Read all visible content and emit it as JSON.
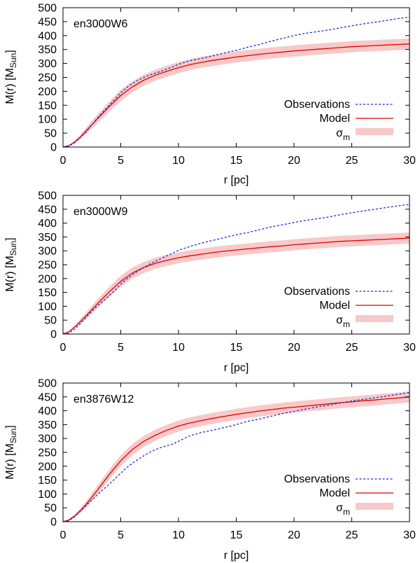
{
  "colors": {
    "observations": "#1f2bd6",
    "model": "#e00000",
    "band": "#f7c9c9",
    "frame": "#000000"
  },
  "chart_data": [
    {
      "type": "line",
      "title": "en3000W6",
      "xlabel": "r [pc]",
      "ylabel": {
        "main": "M(r) [M",
        "sub": "Sun",
        "close": "]"
      },
      "xlim": [
        0,
        30
      ],
      "ylim": [
        0,
        500
      ],
      "xticks": [
        0,
        5,
        10,
        15,
        20,
        25,
        30
      ],
      "yticks": [
        0,
        50,
        100,
        150,
        200,
        250,
        300,
        350,
        400,
        450,
        500
      ],
      "legend": [
        {
          "label": "Observations",
          "style": "dashed"
        },
        {
          "label": "Model",
          "style": "solid"
        },
        {
          "label": "σ",
          "sub": "m",
          "style": "band"
        }
      ],
      "series": [
        {
          "name": "Observations",
          "x": [
            0,
            0.5,
            1,
            1.5,
            2,
            2.5,
            3,
            3.5,
            4,
            4.5,
            5,
            5.5,
            6,
            6.5,
            7,
            7.5,
            8,
            8.5,
            9,
            9.5,
            10,
            11,
            12,
            13,
            14,
            15,
            16,
            17,
            18,
            19,
            20,
            21,
            22,
            23,
            24,
            25,
            26,
            27,
            28,
            29,
            30
          ],
          "y": [
            0,
            3,
            15,
            35,
            55,
            80,
            105,
            128,
            150,
            172,
            195,
            213,
            228,
            240,
            250,
            258,
            265,
            272,
            280,
            288,
            297,
            310,
            318,
            328,
            338,
            347,
            358,
            368,
            380,
            390,
            400,
            408,
            414,
            420,
            428,
            435,
            442,
            448,
            454,
            461,
            466
          ]
        },
        {
          "name": "Model",
          "x": [
            0,
            0.5,
            1,
            1.5,
            2,
            3,
            4,
            5,
            6,
            7,
            8,
            9,
            10,
            11,
            12,
            13,
            14,
            15,
            16,
            17,
            18,
            19,
            20,
            21,
            22,
            23,
            24,
            25,
            26,
            27,
            28,
            29,
            30
          ],
          "y": [
            0,
            5,
            18,
            36,
            58,
            102,
            145,
            185,
            216,
            240,
            258,
            272,
            285,
            296,
            304,
            311,
            317,
            323,
            328,
            333,
            337,
            341,
            345,
            348,
            351,
            354,
            357,
            360,
            362,
            364,
            366,
            368,
            370
          ],
          "band": [
            0,
            1,
            4,
            8,
            12,
            16,
            18,
            20,
            20,
            20,
            20,
            20,
            20,
            20,
            20,
            20,
            20,
            20,
            20,
            20,
            20,
            20,
            20,
            20,
            20,
            20,
            20,
            20,
            20,
            20,
            20,
            20,
            20
          ]
        }
      ]
    },
    {
      "type": "line",
      "title": "en3000W9",
      "xlabel": "r [pc]",
      "ylabel": {
        "main": "M(r) [M",
        "sub": "Sun",
        "close": "]"
      },
      "xlim": [
        0,
        30
      ],
      "ylim": [
        0,
        500
      ],
      "xticks": [
        0,
        5,
        10,
        15,
        20,
        25,
        30
      ],
      "yticks": [
        0,
        50,
        100,
        150,
        200,
        250,
        300,
        350,
        400,
        450,
        500
      ],
      "legend": [
        {
          "label": "Observations",
          "style": "dashed"
        },
        {
          "label": "Model",
          "style": "solid"
        },
        {
          "label": "σ",
          "sub": "m",
          "style": "band"
        }
      ],
      "series": [
        {
          "name": "Observations",
          "x": [
            0,
            0.5,
            1,
            1.5,
            2,
            2.5,
            3,
            3.5,
            4,
            4.5,
            5,
            5.5,
            6,
            6.5,
            7,
            7.5,
            8,
            8.5,
            9,
            9.5,
            10,
            11,
            12,
            13,
            14,
            15,
            16,
            17,
            18,
            19,
            20,
            21,
            22,
            23,
            24,
            25,
            26,
            27,
            28,
            29,
            30
          ],
          "y": [
            0,
            3,
            17,
            38,
            60,
            82,
            102,
            120,
            138,
            158,
            180,
            198,
            213,
            228,
            240,
            252,
            262,
            272,
            282,
            292,
            302,
            316,
            328,
            338,
            348,
            358,
            366,
            376,
            386,
            394,
            402,
            410,
            416,
            422,
            430,
            437,
            444,
            450,
            456,
            462,
            467
          ]
        },
        {
          "name": "Model",
          "x": [
            0,
            0.5,
            1,
            1.5,
            2,
            3,
            4,
            5,
            6,
            7,
            8,
            9,
            10,
            11,
            12,
            13,
            14,
            15,
            16,
            17,
            18,
            19,
            20,
            21,
            22,
            23,
            24,
            25,
            26,
            27,
            28,
            29,
            30
          ],
          "y": [
            0,
            8,
            25,
            45,
            66,
            110,
            152,
            190,
            220,
            240,
            255,
            266,
            275,
            282,
            288,
            294,
            299,
            303,
            307,
            311,
            315,
            318,
            322,
            325,
            328,
            331,
            334,
            336,
            338,
            340,
            342,
            344,
            346
          ],
          "band": [
            0,
            2,
            5,
            9,
            12,
            16,
            18,
            20,
            20,
            20,
            20,
            20,
            20,
            20,
            20,
            20,
            20,
            20,
            20,
            20,
            20,
            20,
            20,
            20,
            20,
            20,
            20,
            20,
            20,
            20,
            20,
            20,
            20
          ]
        }
      ]
    },
    {
      "type": "line",
      "title": "en3876W12",
      "xlabel": "r [pc]",
      "ylabel": {
        "main": "M(r) [M",
        "sub": "Sun",
        "close": "]"
      },
      "xlim": [
        0,
        30
      ],
      "ylim": [
        0,
        500
      ],
      "xticks": [
        0,
        5,
        10,
        15,
        20,
        25,
        30
      ],
      "yticks": [
        0,
        50,
        100,
        150,
        200,
        250,
        300,
        350,
        400,
        450,
        500
      ],
      "legend": [
        {
          "label": "Observations",
          "style": "dashed"
        },
        {
          "label": "Model",
          "style": "solid"
        },
        {
          "label": "σ",
          "sub": "m",
          "style": "band"
        }
      ],
      "series": [
        {
          "name": "Observations",
          "x": [
            0,
            0.5,
            1,
            1.5,
            2,
            2.5,
            3,
            3.5,
            4,
            4.5,
            5,
            5.5,
            6,
            6.5,
            7,
            7.5,
            8,
            8.5,
            9,
            9.5,
            10,
            11,
            12,
            13,
            14,
            15,
            16,
            17,
            18,
            19,
            20,
            21,
            22,
            23,
            24,
            25,
            26,
            27,
            28,
            29,
            30
          ],
          "y": [
            0,
            3,
            18,
            38,
            58,
            78,
            98,
            117,
            135,
            155,
            175,
            195,
            210,
            225,
            238,
            250,
            260,
            268,
            274,
            280,
            290,
            310,
            322,
            330,
            340,
            350,
            362,
            370,
            380,
            390,
            398,
            406,
            414,
            420,
            428,
            435,
            441,
            447,
            453,
            459,
            466
          ]
        },
        {
          "name": "Model",
          "x": [
            0,
            0.5,
            1,
            1.5,
            2,
            3,
            4,
            5,
            6,
            7,
            8,
            9,
            10,
            11,
            12,
            13,
            14,
            15,
            16,
            17,
            18,
            19,
            20,
            21,
            22,
            23,
            24,
            25,
            26,
            27,
            28,
            29,
            30
          ],
          "y": [
            0,
            6,
            20,
            40,
            62,
            115,
            170,
            220,
            260,
            290,
            312,
            330,
            345,
            356,
            365,
            373,
            380,
            387,
            393,
            399,
            404,
            409,
            413,
            417,
            421,
            425,
            429,
            432,
            436,
            439,
            443,
            446,
            450
          ],
          "band": [
            0,
            2,
            5,
            9,
            12,
            16,
            18,
            20,
            20,
            20,
            20,
            20,
            20,
            20,
            20,
            20,
            20,
            20,
            20,
            20,
            20,
            20,
            20,
            20,
            20,
            20,
            20,
            20,
            20,
            20,
            20,
            20,
            20
          ]
        }
      ]
    }
  ]
}
